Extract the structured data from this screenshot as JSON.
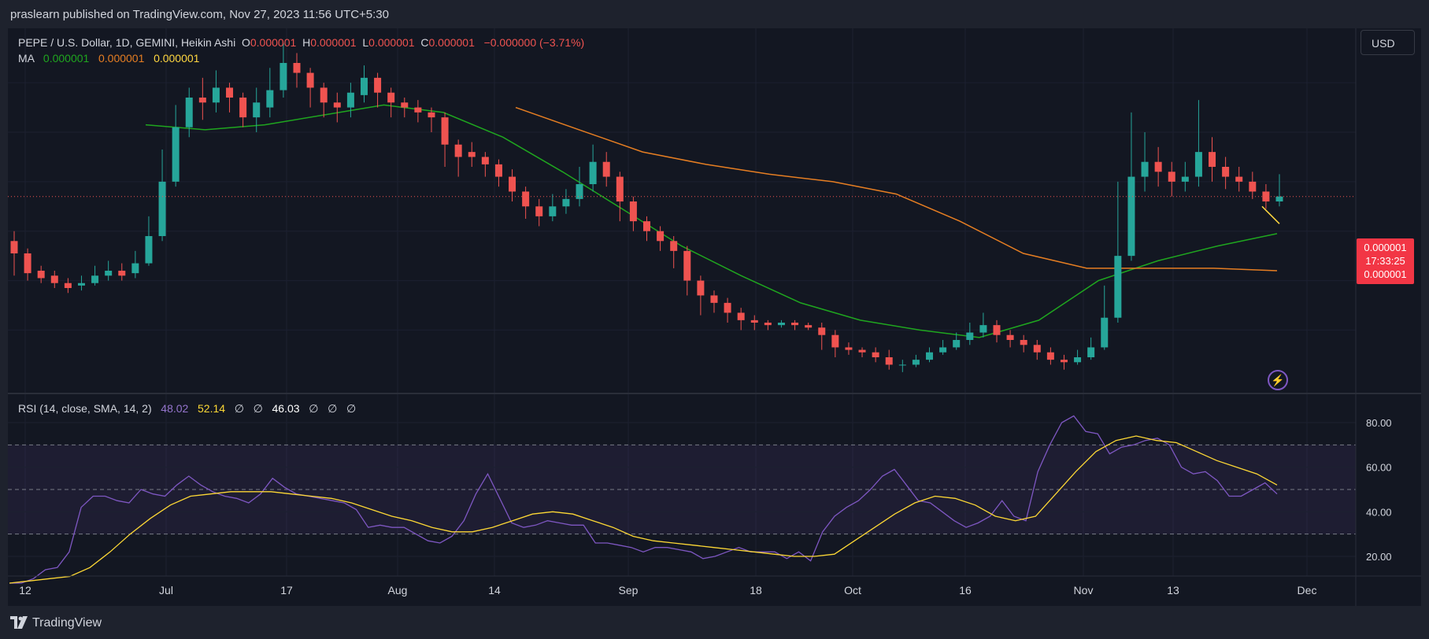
{
  "publisher": "praslearn published on TradingView.com, Nov 27, 2023 11:56 UTC+5:30",
  "footer_brand": "TradingView",
  "currency_button": "USD",
  "legend": {
    "symbol": "PEPE / U.S. Dollar, 1D, GEMINI, Heikin Ashi",
    "o_label": "O",
    "o_value": "0.000001",
    "h_label": "H",
    "h_value": "0.000001",
    "l_label": "L",
    "l_value": "0.000001",
    "c_label": "C",
    "c_value": "0.000001",
    "change": "−0.000000 (−3.71%)",
    "ma_label": "MA",
    "ma_values": [
      "0.000001",
      "0.000001",
      "0.000001"
    ]
  },
  "rsi_legend": {
    "label": "RSI (14, close, SMA, 14, 2)",
    "rsi_value": "48.02",
    "sma_value": "52.14",
    "na1": "∅",
    "na2": "∅",
    "div_value": "46.03",
    "na3": "∅",
    "na4": "∅",
    "na5": "∅"
  },
  "price_box": {
    "price": "0.000001",
    "countdown": "17:33:25",
    "price2": "0.000001"
  },
  "colors": {
    "up": "#26a69a",
    "down": "#ef5350",
    "ma_green": "#1fa61f",
    "ma_orange": "#e67e22",
    "ma_yellow": "#ffd740",
    "rsi": "#7e57c2",
    "rsi_sma": "#fdd835",
    "background": "#131722"
  },
  "chart_data": [
    {
      "type": "candlestick",
      "title": "PEPE / U.S. Dollar, 1D, GEMINI, Heikin Ashi",
      "x_tick_labels": [
        "12",
        "Jul",
        "17",
        "Aug",
        "14",
        "Sep",
        "18",
        "Oct",
        "16",
        "Nov",
        "13",
        "Dec"
      ],
      "y_axis_label_current": "0.000001",
      "series": [
        {
          "name": "Heikin Ashi",
          "values": [
            [
              1.16,
              1.11,
              1.2,
              1.02
            ],
            [
              1.11,
              1.03,
              1.13,
              1.0
            ],
            [
              1.04,
              1.01,
              1.06,
              0.99
            ],
            [
              1.02,
              0.99,
              1.04,
              0.97
            ],
            [
              0.99,
              0.97,
              1.01,
              0.95
            ],
            [
              0.98,
              0.99,
              1.02,
              0.96
            ],
            [
              0.99,
              1.02,
              1.06,
              0.98
            ],
            [
              1.02,
              1.04,
              1.08,
              1.0
            ],
            [
              1.04,
              1.02,
              1.07,
              1.0
            ],
            [
              1.03,
              1.07,
              1.12,
              1.01
            ],
            [
              1.07,
              1.18,
              1.26,
              1.06
            ],
            [
              1.18,
              1.4,
              1.53,
              1.16
            ],
            [
              1.4,
              1.62,
              1.71,
              1.38
            ],
            [
              1.62,
              1.74,
              1.78,
              1.58
            ],
            [
              1.74,
              1.72,
              1.82,
              1.65
            ],
            [
              1.72,
              1.78,
              1.85,
              1.68
            ],
            [
              1.78,
              1.74,
              1.8,
              1.68
            ],
            [
              1.74,
              1.66,
              1.76,
              1.62
            ],
            [
              1.66,
              1.72,
              1.78,
              1.6
            ],
            [
              1.7,
              1.77,
              1.86,
              1.66
            ],
            [
              1.77,
              1.88,
              1.96,
              1.74
            ],
            [
              1.88,
              1.84,
              1.92,
              1.78
            ],
            [
              1.84,
              1.78,
              1.86,
              1.7
            ],
            [
              1.78,
              1.72,
              1.8,
              1.66
            ],
            [
              1.72,
              1.7,
              1.76,
              1.64
            ],
            [
              1.7,
              1.76,
              1.8,
              1.66
            ],
            [
              1.75,
              1.82,
              1.87,
              1.72
            ],
            [
              1.82,
              1.76,
              1.84,
              1.7
            ],
            [
              1.76,
              1.72,
              1.78,
              1.66
            ],
            [
              1.72,
              1.7,
              1.74,
              1.66
            ],
            [
              1.7,
              1.68,
              1.73,
              1.64
            ],
            [
              1.68,
              1.66,
              1.7,
              1.6
            ],
            [
              1.66,
              1.55,
              1.68,
              1.46
            ],
            [
              1.55,
              1.5,
              1.57,
              1.42
            ],
            [
              1.52,
              1.5,
              1.56,
              1.46
            ],
            [
              1.5,
              1.47,
              1.52,
              1.42
            ],
            [
              1.47,
              1.42,
              1.49,
              1.38
            ],
            [
              1.42,
              1.36,
              1.45,
              1.32
            ],
            [
              1.36,
              1.3,
              1.38,
              1.25
            ],
            [
              1.3,
              1.26,
              1.33,
              1.22
            ],
            [
              1.26,
              1.3,
              1.35,
              1.24
            ],
            [
              1.3,
              1.33,
              1.37,
              1.27
            ],
            [
              1.33,
              1.39,
              1.46,
              1.3
            ],
            [
              1.39,
              1.48,
              1.55,
              1.36
            ],
            [
              1.48,
              1.42,
              1.52,
              1.38
            ],
            [
              1.42,
              1.32,
              1.44,
              1.24
            ],
            [
              1.32,
              1.24,
              1.34,
              1.2
            ],
            [
              1.24,
              1.2,
              1.26,
              1.16
            ],
            [
              1.2,
              1.16,
              1.22,
              1.12
            ],
            [
              1.16,
              1.12,
              1.18,
              1.05
            ],
            [
              1.12,
              1.0,
              1.14,
              0.94
            ],
            [
              1.0,
              0.94,
              1.02,
              0.86
            ],
            [
              0.94,
              0.91,
              0.96,
              0.87
            ],
            [
              0.91,
              0.87,
              0.93,
              0.83
            ],
            [
              0.87,
              0.84,
              0.89,
              0.8
            ],
            [
              0.84,
              0.83,
              0.86,
              0.8
            ],
            [
              0.83,
              0.82,
              0.84,
              0.8
            ],
            [
              0.82,
              0.83,
              0.84,
              0.81
            ],
            [
              0.83,
              0.82,
              0.84,
              0.8
            ],
            [
              0.82,
              0.81,
              0.83,
              0.8
            ],
            [
              0.81,
              0.78,
              0.83,
              0.72
            ],
            [
              0.78,
              0.73,
              0.8,
              0.69
            ],
            [
              0.73,
              0.72,
              0.75,
              0.7
            ],
            [
              0.72,
              0.71,
              0.73,
              0.69
            ],
            [
              0.71,
              0.69,
              0.73,
              0.67
            ],
            [
              0.69,
              0.66,
              0.72,
              0.64
            ],
            [
              0.66,
              0.66,
              0.68,
              0.63
            ],
            [
              0.66,
              0.68,
              0.7,
              0.65
            ],
            [
              0.68,
              0.71,
              0.73,
              0.67
            ],
            [
              0.71,
              0.73,
              0.76,
              0.7
            ],
            [
              0.73,
              0.76,
              0.79,
              0.72
            ],
            [
              0.76,
              0.79,
              0.83,
              0.74
            ],
            [
              0.79,
              0.82,
              0.87,
              0.77
            ],
            [
              0.82,
              0.78,
              0.84,
              0.75
            ],
            [
              0.78,
              0.76,
              0.8,
              0.73
            ],
            [
              0.76,
              0.74,
              0.78,
              0.71
            ],
            [
              0.74,
              0.71,
              0.76,
              0.68
            ],
            [
              0.71,
              0.68,
              0.73,
              0.66
            ],
            [
              0.68,
              0.67,
              0.7,
              0.64
            ],
            [
              0.67,
              0.69,
              0.72,
              0.66
            ],
            [
              0.69,
              0.73,
              0.77,
              0.68
            ],
            [
              0.73,
              0.85,
              0.98,
              0.72
            ],
            [
              0.85,
              1.1,
              1.4,
              0.83
            ],
            [
              1.1,
              1.42,
              1.68,
              1.08
            ],
            [
              1.42,
              1.48,
              1.6,
              1.36
            ],
            [
              1.48,
              1.44,
              1.54,
              1.38
            ],
            [
              1.44,
              1.4,
              1.48,
              1.34
            ],
            [
              1.4,
              1.42,
              1.48,
              1.36
            ],
            [
              1.42,
              1.52,
              1.73,
              1.38
            ],
            [
              1.52,
              1.46,
              1.58,
              1.4
            ],
            [
              1.46,
              1.42,
              1.5,
              1.37
            ],
            [
              1.42,
              1.4,
              1.46,
              1.36
            ],
            [
              1.4,
              1.36,
              1.44,
              1.33
            ],
            [
              1.36,
              1.32,
              1.39,
              1.29
            ],
            [
              1.32,
              1.34,
              1.43,
              1.3
            ]
          ]
        },
        {
          "name": "MA (green)",
          "values": [
            1.63,
            1.61,
            1.63,
            1.67,
            1.71,
            1.68,
            1.58,
            1.44,
            1.29,
            1.14,
            1.02,
            0.91,
            0.84,
            0.8,
            0.77,
            0.84,
            1.0,
            1.08,
            1.14,
            1.19
          ]
        },
        {
          "name": "MA (orange)",
          "values": [
            1.7,
            1.61,
            1.52,
            1.47,
            1.43,
            1.4,
            1.35,
            1.24,
            1.11,
            1.05,
            1.05,
            1.05,
            1.04
          ]
        },
        {
          "name": "MA (yellow)",
          "values": [
            1.3,
            1.23
          ]
        }
      ]
    },
    {
      "type": "line",
      "title": "RSI (14, close, SMA, 14, 2)",
      "y_tick_labels": [
        "80.00",
        "60.00",
        "40.00",
        "20.00"
      ],
      "ylim": [
        0,
        100
      ],
      "bands": [
        30,
        50,
        70
      ],
      "series": [
        {
          "name": "RSI",
          "values": [
            8,
            8,
            10,
            14,
            15,
            22,
            42,
            47,
            47,
            45,
            44,
            50,
            48,
            47,
            52,
            56,
            52,
            49,
            47,
            46,
            44,
            48,
            55,
            51,
            48,
            47,
            46,
            45,
            44,
            41,
            33,
            34,
            33,
            33,
            30,
            27,
            26,
            29,
            36,
            48,
            57,
            46,
            35,
            33,
            34,
            36,
            35,
            34,
            34,
            26,
            26,
            25,
            24,
            22,
            24,
            24,
            23,
            22,
            19,
            20,
            22,
            24,
            22,
            22,
            22,
            19,
            22,
            18,
            31,
            38,
            42,
            45,
            50,
            56,
            59,
            52,
            45,
            44,
            40,
            36,
            33,
            35,
            38,
            45,
            38,
            36,
            58,
            70,
            80,
            83,
            76,
            75,
            66,
            69,
            70,
            72,
            73,
            70,
            60,
            57,
            58,
            54,
            47,
            47,
            50,
            53,
            48
          ]
        },
        {
          "name": "RSI SMA",
          "values": [
            8,
            9,
            10,
            11,
            15,
            22,
            30,
            37,
            43,
            47,
            48,
            49,
            49,
            49,
            48,
            47,
            46,
            44,
            41,
            38,
            36,
            33,
            31,
            31,
            33,
            36,
            39,
            40,
            39,
            36,
            33,
            29,
            27,
            26,
            25,
            24,
            23,
            22,
            21,
            20,
            20,
            21,
            27,
            33,
            39,
            44,
            47,
            46,
            43,
            38,
            36,
            38,
            48,
            58,
            67,
            72,
            74,
            72,
            71,
            67,
            63,
            60,
            57,
            52
          ]
        }
      ]
    }
  ]
}
